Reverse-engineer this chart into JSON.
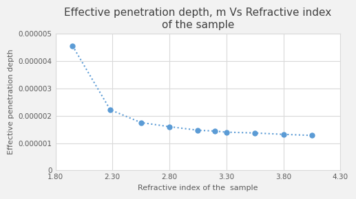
{
  "title_line1": "Effective penetration depth, m Vs Refractive index",
  "title_line2": "of the sample",
  "xlabel": "Refractive index of the  sample",
  "ylabel": "Effective penetration depth",
  "x": [
    1.95,
    2.28,
    2.55,
    2.8,
    3.05,
    3.2,
    3.3,
    3.55,
    3.8,
    4.05
  ],
  "y": [
    4.55e-06,
    2.22e-06,
    1.75e-06,
    1.6e-06,
    1.47e-06,
    1.44e-06,
    1.4e-06,
    1.37e-06,
    1.32e-06,
    1.28e-06
  ],
  "line_color": "#5B9BD5",
  "marker_color": "#5B9BD5",
  "xlim": [
    1.8,
    4.3
  ],
  "ylim": [
    0,
    5e-06
  ],
  "xticks": [
    1.8,
    2.3,
    2.8,
    3.3,
    3.8,
    4.3
  ],
  "yticks": [
    0,
    1e-06,
    2e-06,
    3e-06,
    4e-06,
    5e-06
  ],
  "ytick_labels": [
    "0",
    "0.000001",
    "0.000002",
    "0.000003",
    "0.000004",
    "0.000005"
  ],
  "background_color": "#ffffff",
  "plot_bg_color": "#ffffff",
  "outer_bg_color": "#f2f2f2",
  "grid_color": "#d9d9d9",
  "tick_color": "#595959",
  "title_color": "#404040",
  "label_color": "#595959",
  "title_fontsize": 11,
  "label_fontsize": 8,
  "tick_fontsize": 7.5
}
